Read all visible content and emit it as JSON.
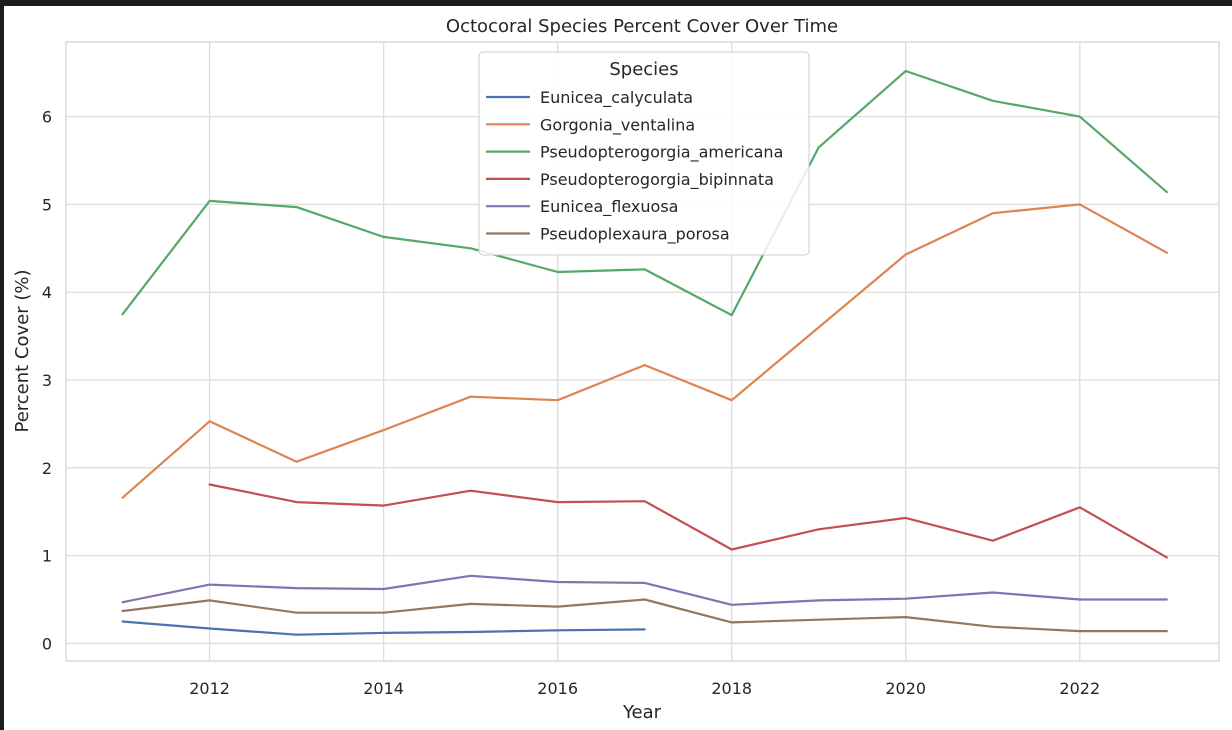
{
  "chart_data": {
    "type": "line",
    "title": "Octocoral Species Percent Cover Over Time",
    "xlabel": "Year",
    "ylabel": "Percent Cover (%)",
    "xlim": [
      2010.35,
      2023.6
    ],
    "ylim": [
      -0.2,
      6.85
    ],
    "xticks": [
      2012,
      2014,
      2016,
      2018,
      2020,
      2022
    ],
    "yticks": [
      0,
      1,
      2,
      3,
      4,
      5,
      6
    ],
    "grid": true,
    "legend": {
      "title": "Species",
      "placement": "upper-center"
    },
    "series": [
      {
        "name": "Eunicea_calyculata",
        "color": "#4c72b0",
        "x": [
          2011,
          2012,
          2013,
          2014,
          2015,
          2016,
          2017
        ],
        "y": [
          0.25,
          0.17,
          0.1,
          0.12,
          0.13,
          0.15,
          0.16
        ]
      },
      {
        "name": "Gorgonia_ventalina",
        "color": "#dd8452",
        "x": [
          2011,
          2012,
          2013,
          2014,
          2015,
          2016,
          2017,
          2018,
          2019,
          2020,
          2021,
          2022,
          2023
        ],
        "y": [
          1.66,
          2.53,
          2.07,
          2.43,
          2.81,
          2.77,
          3.17,
          2.77,
          3.6,
          4.43,
          4.9,
          5.0,
          4.45
        ]
      },
      {
        "name": "Pseudopterogorgia_americana",
        "color": "#55a868",
        "x": [
          2011,
          2012,
          2013,
          2014,
          2015,
          2016,
          2017,
          2018,
          2019,
          2020,
          2021,
          2022,
          2023
        ],
        "y": [
          3.75,
          5.04,
          4.97,
          4.63,
          4.5,
          4.23,
          4.26,
          3.74,
          5.65,
          6.52,
          6.18,
          6.0,
          5.14
        ]
      },
      {
        "name": "Pseudopterogorgia_bipinnata",
        "color": "#c44e52",
        "x": [
          2012,
          2013,
          2014,
          2015,
          2016,
          2017,
          2018,
          2019,
          2020,
          2021,
          2022,
          2023
        ],
        "y": [
          1.81,
          1.61,
          1.57,
          1.74,
          1.61,
          1.62,
          1.07,
          1.3,
          1.43,
          1.17,
          1.55,
          0.98
        ]
      },
      {
        "name": "Eunicea_flexuosa",
        "color": "#8172b3",
        "x": [
          2011,
          2012,
          2013,
          2014,
          2015,
          2016,
          2017,
          2018,
          2019,
          2020,
          2021,
          2022,
          2023
        ],
        "y": [
          0.47,
          0.67,
          0.63,
          0.62,
          0.77,
          0.7,
          0.69,
          0.44,
          0.49,
          0.51,
          0.58,
          0.5,
          0.5
        ]
      },
      {
        "name": "Pseudoplexaura_porosa",
        "color": "#937860",
        "x": [
          2011,
          2012,
          2013,
          2014,
          2015,
          2016,
          2017,
          2018,
          2019,
          2020,
          2021,
          2022,
          2023
        ],
        "y": [
          0.37,
          0.49,
          0.35,
          0.35,
          0.45,
          0.42,
          0.5,
          0.24,
          0.27,
          0.3,
          0.19,
          0.14,
          0.14
        ]
      }
    ]
  }
}
